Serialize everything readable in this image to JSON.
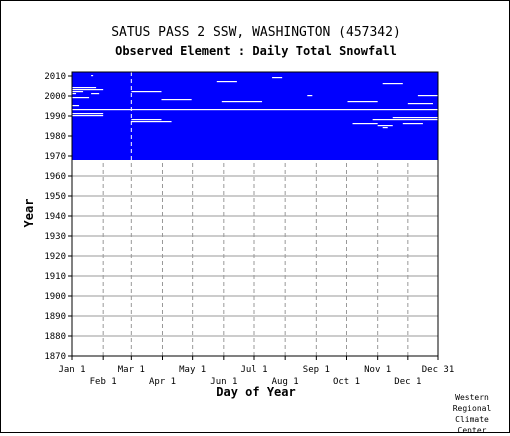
{
  "title": "SATUS PASS 2 SSW, WASHINGTON   (457342)",
  "subtitle": "Observed Element : Daily Total Snowfall",
  "credit": [
    "Western",
    "Regional",
    "Climate",
    "Center"
  ],
  "colors": {
    "data": "#0000ff",
    "missing": "#ffffff",
    "grid": "#999999",
    "axis": "#000000"
  },
  "chart_data": {
    "type": "heatmap",
    "title": "SATUS PASS 2 SSW, WASHINGTON   (457342)",
    "subtitle": "Observed Element : Daily Total Snowfall",
    "xlabel": "Day of Year",
    "ylabel": "Year",
    "xlim": [
      "Jan 1",
      "Dec 31"
    ],
    "ylim": [
      1870,
      2012
    ],
    "y_ticks": [
      2010,
      2000,
      1990,
      1980,
      1970,
      1960,
      1950,
      1940,
      1930,
      1920,
      1910,
      1900,
      1890,
      1880,
      1870
    ],
    "x_ticks_top": [
      {
        "label": "Jan 1",
        "day": 1
      },
      {
        "label": "Mar 1",
        "day": 60
      },
      {
        "label": "May 1",
        "day": 121
      },
      {
        "label": "Jul 1",
        "day": 182
      },
      {
        "label": "Sep 1",
        "day": 244
      },
      {
        "label": "Nov 1",
        "day": 305
      },
      {
        "label": "Dec 31",
        "day": 365
      }
    ],
    "x_ticks_bottom": [
      {
        "label": "Feb 1",
        "day": 32
      },
      {
        "label": "Apr 1",
        "day": 91
      },
      {
        "label": "Jun 1",
        "day": 152
      },
      {
        "label": "Aug 1",
        "day": 213
      },
      {
        "label": "Oct 1",
        "day": 274
      },
      {
        "label": "Dec 1",
        "day": 335
      }
    ],
    "data_years": [
      1968,
      2012
    ],
    "grid": true,
    "legend": "none",
    "missing_segments": [
      {
        "year": 2010,
        "start": 20,
        "end": 22
      },
      {
        "year": 2009,
        "start": 200,
        "end": 210
      },
      {
        "year": 2007,
        "start": 145,
        "end": 165
      },
      {
        "year": 2006,
        "start": 310,
        "end": 330
      },
      {
        "year": 2004,
        "start": 1,
        "end": 25
      },
      {
        "year": 2003,
        "start": 1,
        "end": 32
      },
      {
        "year": 2002,
        "start": 1,
        "end": 12
      },
      {
        "year": 2002,
        "start": 60,
        "end": 90
      },
      {
        "year": 2001,
        "start": 1,
        "end": 5
      },
      {
        "year": 2001,
        "start": 20,
        "end": 28
      },
      {
        "year": 2000,
        "start": 235,
        "end": 240
      },
      {
        "year": 2000,
        "start": 345,
        "end": 365
      },
      {
        "year": 1999,
        "start": 1,
        "end": 18
      },
      {
        "year": 1998,
        "start": 90,
        "end": 120
      },
      {
        "year": 1997,
        "start": 150,
        "end": 190
      },
      {
        "year": 1997,
        "start": 275,
        "end": 305
      },
      {
        "year": 1996,
        "start": 335,
        "end": 360
      },
      {
        "year": 1995,
        "start": 1,
        "end": 8
      },
      {
        "year": 1993,
        "start": 1,
        "end": 365
      },
      {
        "year": 1991,
        "start": 1,
        "end": 32
      },
      {
        "year": 1990,
        "start": 1,
        "end": 32
      },
      {
        "year": 1989,
        "start": 320,
        "end": 365
      },
      {
        "year": 1988,
        "start": 60,
        "end": 90
      },
      {
        "year": 1988,
        "start": 300,
        "end": 365
      },
      {
        "year": 1987,
        "start": 60,
        "end": 100
      },
      {
        "year": 1986,
        "start": 280,
        "end": 305
      },
      {
        "year": 1986,
        "start": 330,
        "end": 350
      },
      {
        "year": 1985,
        "start": 305,
        "end": 320
      },
      {
        "year": 1984,
        "start": 310,
        "end": 315
      }
    ]
  }
}
